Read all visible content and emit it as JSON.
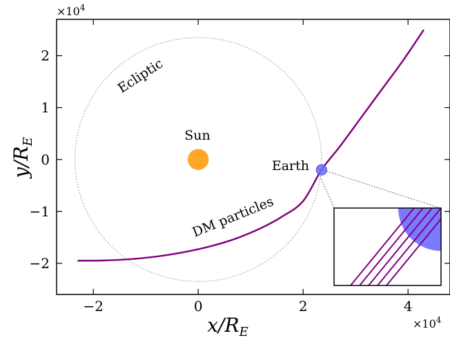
{
  "chart_data": {
    "type": "line",
    "x_multiplier": "×10",
    "x_multiplier_exp": "4",
    "y_multiplier": "×10",
    "y_multiplier_exp": "4",
    "xlabel": {
      "base": "x/R",
      "sub": "E"
    },
    "ylabel": {
      "base": "y/R",
      "sub": "E"
    },
    "xlim": [
      -2.7,
      4.8
    ],
    "ylim": [
      -2.6,
      2.7
    ],
    "xticks": [
      {
        "value": -2,
        "label": "−2"
      },
      {
        "value": 0,
        "label": "0"
      },
      {
        "value": 2,
        "label": "2"
      },
      {
        "value": 4,
        "label": "4"
      }
    ],
    "yticks": [
      {
        "value": -2,
        "label": "−2"
      },
      {
        "value": -1,
        "label": "−1"
      },
      {
        "value": 0,
        "label": "0"
      },
      {
        "value": 1,
        "label": "1"
      },
      {
        "value": 2,
        "label": "2"
      }
    ],
    "grid": false,
    "colors": {
      "trajectory": "#800080",
      "sun": "#FFA726",
      "earth": "#6B6BFF",
      "ecliptic": "#a0a0a0"
    },
    "ecliptic": {
      "center": [
        0,
        0
      ],
      "radius": 2.35
    },
    "sun": {
      "center": [
        0,
        0
      ],
      "radius": 0.2
    },
    "earth": {
      "center": [
        2.35,
        -0.2
      ],
      "radius": 0.1
    },
    "trajectory": [
      [
        -2.3,
        -1.95
      ],
      [
        -1.8,
        -1.945
      ],
      [
        -1.3,
        -1.92
      ],
      [
        -0.8,
        -1.87
      ],
      [
        -0.3,
        -1.79
      ],
      [
        0.2,
        -1.68
      ],
      [
        0.7,
        -1.53
      ],
      [
        1.2,
        -1.32
      ],
      [
        1.6,
        -1.1
      ],
      [
        2.0,
        -0.8
      ],
      [
        2.35,
        -0.2
      ],
      [
        2.7,
        0.25
      ],
      [
        3.1,
        0.8
      ],
      [
        3.5,
        1.35
      ],
      [
        3.9,
        1.9
      ],
      [
        4.3,
        2.5
      ]
    ],
    "annotations": {
      "ecliptic": "Ecliptic",
      "sun": "Sun",
      "earth": "Earth",
      "dm": "DM particles"
    },
    "inset": {
      "lines": 5
    }
  }
}
